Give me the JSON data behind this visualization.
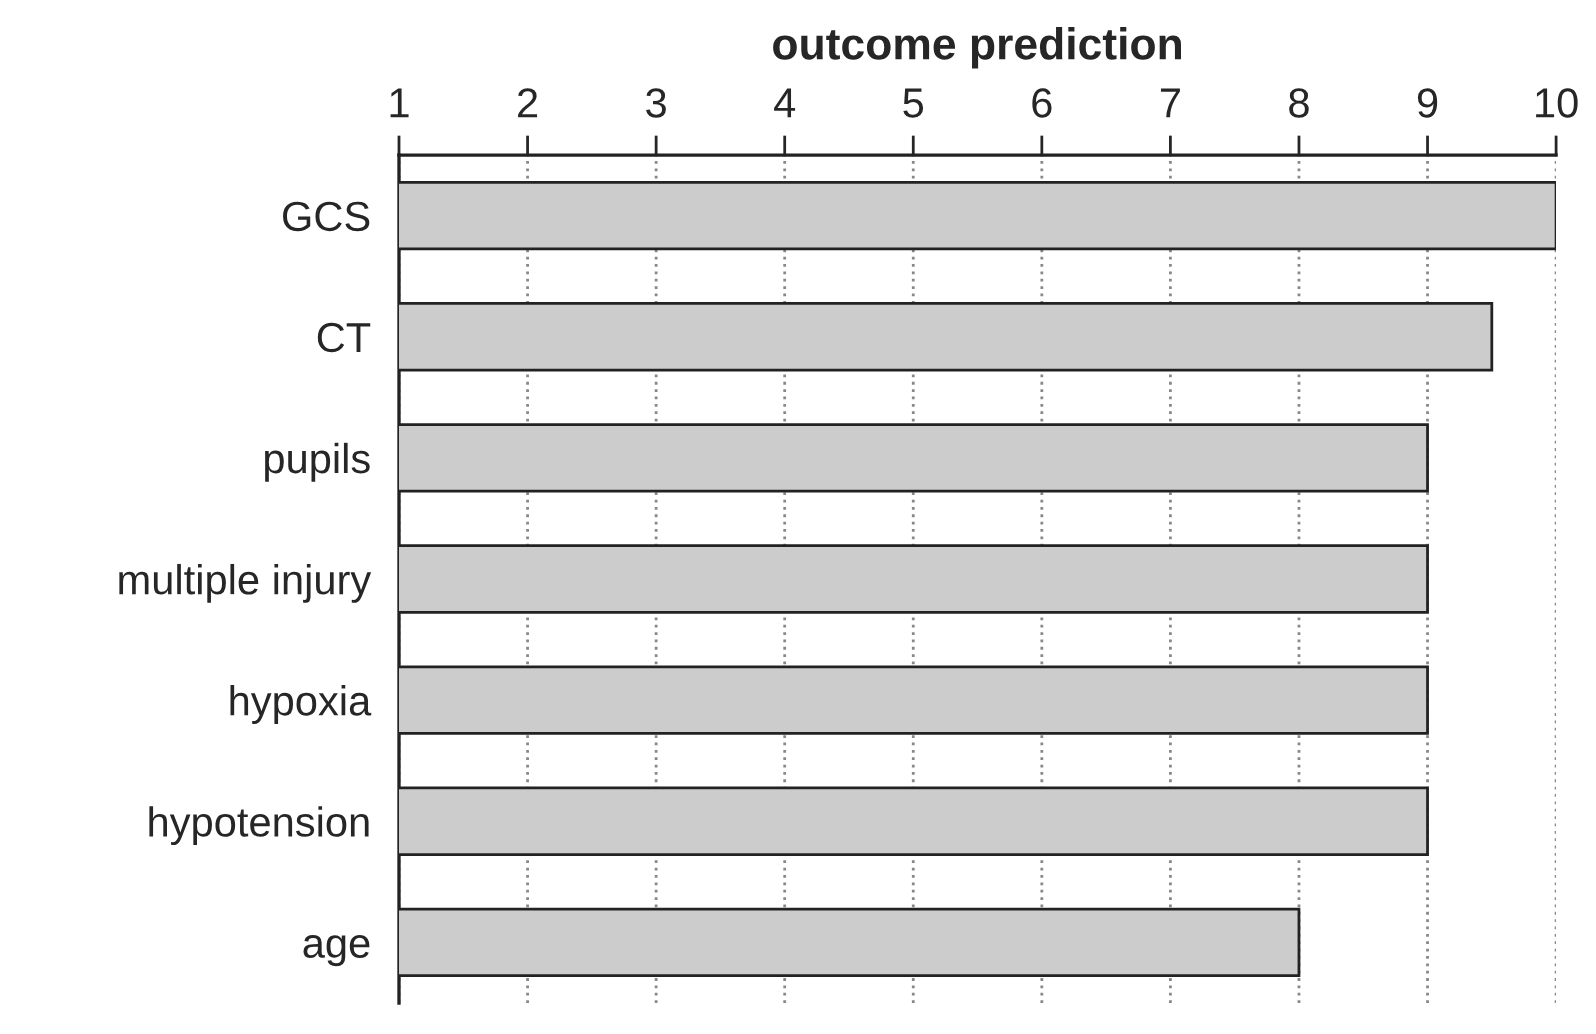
{
  "chart_data": {
    "type": "bar",
    "orientation": "horizontal",
    "xlabel": "outcome prediction",
    "categories": [
      "GCS",
      "CT",
      "pupils",
      "multiple injury",
      "hypoxia",
      "hypotension",
      "age"
    ],
    "values": [
      10,
      9.5,
      9,
      9,
      9,
      9,
      8
    ],
    "color": "#cccccc",
    "xlim": [
      1,
      10
    ],
    "xticks": [
      1,
      2,
      3,
      4,
      5,
      6,
      7,
      8,
      9,
      10
    ],
    "grid": "x",
    "legend": false
  }
}
